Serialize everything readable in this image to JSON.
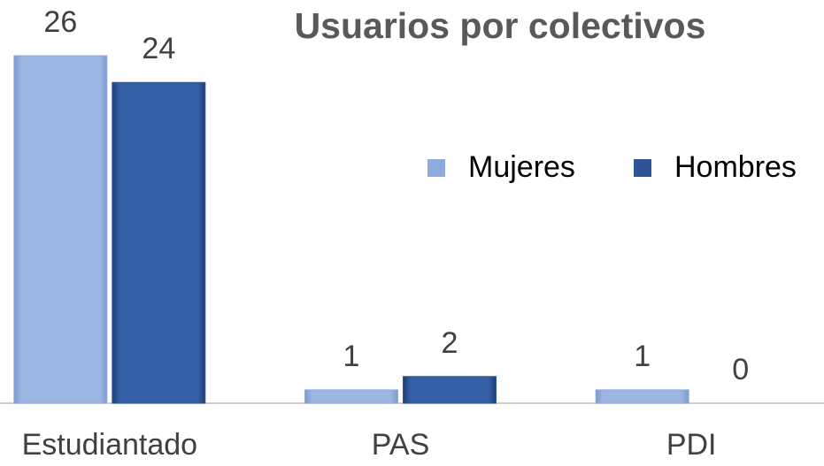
{
  "chart_data": {
    "type": "bar",
    "title": "Usuarios por colectivos",
    "categories": [
      "Estudiantado",
      "PAS",
      "PDI"
    ],
    "series": [
      {
        "name": "Mujeres",
        "color": "#8faadc",
        "values": [
          26,
          1,
          1
        ]
      },
      {
        "name": "Hombres",
        "color": "#2f5597",
        "values": [
          24,
          2,
          0
        ]
      }
    ],
    "ylim": [
      0,
      26
    ]
  }
}
